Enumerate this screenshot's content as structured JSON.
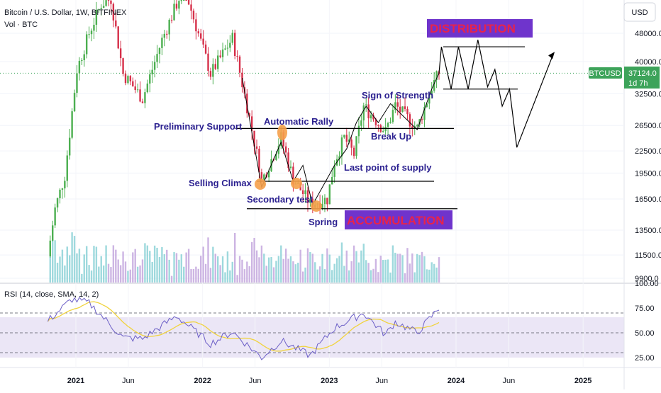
{
  "header": {
    "title": "Bitcoin / U.S. Dollar, 1W, BITFINEX",
    "volume_label": "Vol · BTC",
    "currency_button": "USD"
  },
  "price_tag": {
    "symbol": "BTCUSD",
    "price": "37124.0",
    "countdown": "1d 7h"
  },
  "rsi": {
    "label": "RSI (14, close, SMA, 14, 2)",
    "levels": [
      70,
      50,
      30
    ],
    "band_color": "#b7a6e0",
    "line_color": "#6c5fc7",
    "ma_color": "#f0d33e"
  },
  "annotations": {
    "distribution": "DISTRIBUTION",
    "accumulation": "ACCUMULATION",
    "sign_of_strength": "Sign of Strength",
    "automatic_rally": "Automatic Rally",
    "preliminary_support": "Preliminary Support",
    "break_up": "Break Up",
    "last_point_of_supply": "Last point of supply",
    "selling_climax": "Selling Climax",
    "secondary_test": "Secondary test",
    "spring": "Spring"
  },
  "colors": {
    "up_candle": "#4caf50",
    "down_candle": "#d6304a",
    "vol_up": "#86cfd5",
    "vol_down": "#c1a3dc",
    "phase_box": "#6f34cc",
    "phase_text": "#e8234a",
    "annotation_text": "#2a1f8f",
    "marker_fill": "#f5a04a",
    "price_tag": "#3da35a"
  },
  "chart_data": {
    "type": "candlestick",
    "title": "Bitcoin / U.S. Dollar, 1W, BITFINEX",
    "price_scale": "log",
    "price_ticks": [
      48000.0,
      40000.0,
      32500.0,
      26500.0,
      22500.0,
      19500.0,
      16500.0,
      13500.0,
      11500.0,
      9900.0
    ],
    "rsi_ticks": [
      100.0,
      75.0,
      50.0,
      25.0
    ],
    "x_ticks": [
      "2021",
      "Jun",
      "2022",
      "Jun",
      "2023",
      "Jun",
      "2024",
      "Jun",
      "2025"
    ],
    "last_price": 37124.0,
    "key_levels": {
      "resistance_trading_range": 26000,
      "support_trading_range": 18500,
      "spring_low": 15500,
      "distribution_top": 44000,
      "distribution_bottom": 33500
    },
    "price_path_weekly_close": [
      {
        "date": "2020-10-12",
        "close": 11400
      },
      {
        "date": "2020-11-02",
        "close": 15500
      },
      {
        "date": "2020-11-30",
        "close": 19200
      },
      {
        "date": "2021-01-04",
        "close": 38000
      },
      {
        "date": "2021-02-08",
        "close": 48000
      },
      {
        "date": "2021-03-15",
        "close": 58000
      },
      {
        "date": "2021-04-12",
        "close": 60000
      },
      {
        "date": "2021-05-17",
        "close": 37000
      },
      {
        "date": "2021-07-12",
        "close": 31500
      },
      {
        "date": "2021-09-06",
        "close": 46000
      },
      {
        "date": "2021-11-08",
        "close": 65000
      },
      {
        "date": "2022-01-24",
        "close": 37000
      },
      {
        "date": "2022-03-28",
        "close": 46500
      },
      {
        "date": "2022-05-09",
        "close": 30000
      },
      {
        "date": "2022-06-13",
        "close": 20500
      },
      {
        "date": "2022-06-20",
        "close": 18500
      },
      {
        "date": "2022-08-15",
        "close": 24500
      },
      {
        "date": "2022-09-19",
        "close": 18800
      },
      {
        "date": "2022-11-07",
        "close": 16000
      },
      {
        "date": "2022-12-26",
        "close": 16500
      },
      {
        "date": "2023-01-16",
        "close": 21000
      },
      {
        "date": "2023-02-13",
        "close": 24500
      },
      {
        "date": "2023-03-13",
        "close": 22000
      },
      {
        "date": "2023-04-10",
        "close": 30000
      },
      {
        "date": "2023-06-12",
        "close": 25500
      },
      {
        "date": "2023-07-10",
        "close": 30200
      },
      {
        "date": "2023-09-11",
        "close": 26000
      },
      {
        "date": "2023-10-23",
        "close": 34000
      },
      {
        "date": "2023-11-13",
        "close": 37124
      }
    ],
    "projected_path": [
      {
        "date": "2023-11-20",
        "close": 44000
      },
      {
        "date": "2023-12-18",
        "close": 33500
      },
      {
        "date": "2024-01-08",
        "close": 44000
      },
      {
        "date": "2024-02-05",
        "close": 33500
      },
      {
        "date": "2024-03-04",
        "close": 46000
      },
      {
        "date": "2024-04-01",
        "close": 34000
      },
      {
        "date": "2024-04-22",
        "close": 38000
      },
      {
        "date": "2024-05-13",
        "close": 30000
      },
      {
        "date": "2024-06-03",
        "close": 33500
      },
      {
        "date": "2024-06-24",
        "close": 23000
      },
      {
        "date": "2024-10-07",
        "close": 42000
      }
    ],
    "rsi_points": [
      {
        "date": "2020-10-12",
        "rsi": 62
      },
      {
        "date": "2020-12-21",
        "rsi": 84
      },
      {
        "date": "2021-02-08",
        "rsi": 80
      },
      {
        "date": "2021-05-17",
        "rsi": 45
      },
      {
        "date": "2021-07-12",
        "rsi": 44
      },
      {
        "date": "2021-10-18",
        "rsi": 67
      },
      {
        "date": "2022-01-24",
        "rsi": 39
      },
      {
        "date": "2022-03-28",
        "rsi": 51
      },
      {
        "date": "2022-06-20",
        "rsi": 25
      },
      {
        "date": "2022-08-15",
        "rsi": 42
      },
      {
        "date": "2022-11-07",
        "rsi": 27
      },
      {
        "date": "2023-01-16",
        "rsi": 55
      },
      {
        "date": "2023-04-10",
        "rsi": 70
      },
      {
        "date": "2023-06-12",
        "rsi": 48
      },
      {
        "date": "2023-07-10",
        "rsi": 61
      },
      {
        "date": "2023-09-11",
        "rsi": 50
      },
      {
        "date": "2023-11-13",
        "rsi": 75
      }
    ]
  }
}
